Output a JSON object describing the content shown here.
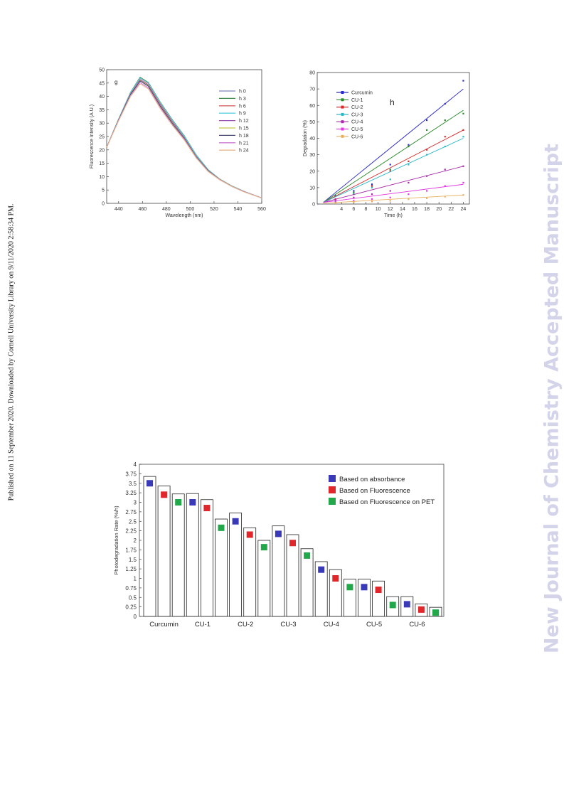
{
  "page": {
    "side_note": "Published on 11 September 2020. Downloaded by Cornell University Library on 9/11/2020 2:58:34 PM.",
    "watermark": "New Journal of Chemistry Accepted Manuscript"
  },
  "chart_data": [
    {
      "type": "line",
      "panel_label": "g",
      "xlabel": "Wavelength (nm)",
      "ylabel": "Fluorescence Intensity (A.U.)",
      "xlim": [
        430,
        560
      ],
      "ylim": [
        0,
        50
      ],
      "xticks": [
        440,
        460,
        480,
        500,
        520,
        540,
        560
      ],
      "yticks": [
        0,
        5,
        10,
        15,
        20,
        25,
        30,
        35,
        40,
        45,
        50
      ],
      "legend_position": "right",
      "x": [
        430,
        440,
        450,
        458,
        465,
        475,
        485,
        495,
        505,
        515,
        525,
        535,
        545,
        560
      ],
      "series": [
        {
          "name": "h 0",
          "color": "#7a86c4",
          "values": [
            21,
            31.5,
            41.5,
            47.0,
            45.0,
            37.5,
            31.0,
            25.0,
            18.0,
            12.5,
            9.0,
            6.5,
            4.5,
            2.0
          ]
        },
        {
          "name": "h 3",
          "color": "#3c8a4a",
          "values": [
            21,
            31.5,
            41.5,
            47.2,
            45.2,
            37.8,
            31.3,
            25.3,
            18.2,
            12.6,
            9.0,
            6.5,
            4.5,
            2.0
          ]
        },
        {
          "name": "h 6",
          "color": "#d46464",
          "values": [
            21,
            31.4,
            41.3,
            46.8,
            44.8,
            37.3,
            30.8,
            24.8,
            17.8,
            12.4,
            9.0,
            6.4,
            4.5,
            2.0
          ]
        },
        {
          "name": "h 9",
          "color": "#5fd0e0",
          "values": [
            21,
            31.5,
            41.4,
            46.9,
            45.0,
            37.6,
            31.1,
            25.1,
            18.1,
            12.5,
            9.0,
            6.5,
            4.5,
            2.0
          ]
        },
        {
          "name": "h 12",
          "color": "#9b4fb0",
          "values": [
            21,
            31.3,
            41.0,
            46.3,
            44.3,
            36.8,
            30.4,
            24.6,
            17.6,
            12.3,
            8.9,
            6.4,
            4.4,
            2.0
          ]
        },
        {
          "name": "h 15",
          "color": "#c8c44a",
          "values": [
            21,
            31.2,
            40.8,
            46.0,
            44.0,
            36.5,
            30.1,
            24.4,
            17.5,
            12.2,
            8.9,
            6.4,
            4.4,
            2.0
          ]
        },
        {
          "name": "h 18",
          "color": "#444a6e",
          "values": [
            21,
            31.2,
            40.7,
            45.8,
            43.8,
            36.3,
            29.9,
            24.3,
            17.4,
            12.2,
            8.8,
            6.3,
            4.4,
            2.0
          ]
        },
        {
          "name": "h 21",
          "color": "#c87ad0",
          "values": [
            21,
            31.0,
            40.3,
            45.2,
            43.2,
            35.8,
            29.5,
            24.0,
            17.2,
            12.0,
            8.8,
            6.3,
            4.4,
            2.0
          ]
        },
        {
          "name": "h 24",
          "color": "#e8b890",
          "values": [
            21,
            30.9,
            40.0,
            44.7,
            42.8,
            35.4,
            29.2,
            23.7,
            17.0,
            11.9,
            8.7,
            6.3,
            4.3,
            2.0
          ]
        }
      ]
    },
    {
      "type": "scatter",
      "panel_label": "h",
      "xlabel": "Time (h)",
      "ylabel": "Degradation (%)",
      "xlim": [
        0,
        25
      ],
      "ylim": [
        0,
        80
      ],
      "xticks": [
        4,
        6,
        8,
        10,
        12,
        14,
        16,
        18,
        20,
        22,
        24
      ],
      "yticks": [
        0,
        10,
        20,
        30,
        40,
        50,
        60,
        70,
        80
      ],
      "legend_position": "top-left",
      "x": [
        3,
        6,
        9,
        12,
        15,
        18,
        21,
        24
      ],
      "series": [
        {
          "name": "Curcumin",
          "color": "#2a2ac8",
          "values": [
            5,
            8,
            12,
            24,
            36,
            51,
            61,
            75
          ],
          "fit": [
            [
              1,
              1
            ],
            [
              24,
              70
            ]
          ]
        },
        {
          "name": "CU-1",
          "color": "#2a8a2a",
          "values": [
            3,
            7,
            11,
            21,
            35,
            45,
            51,
            55
          ],
          "fit": [
            [
              1,
              1
            ],
            [
              24,
              57
            ]
          ]
        },
        {
          "name": "CU-2",
          "color": "#d42a2a",
          "values": [
            3,
            6,
            11,
            20,
            26,
            33,
            41,
            45
          ],
          "fit": [
            [
              1,
              1
            ],
            [
              24,
              45
            ]
          ]
        },
        {
          "name": "CU-3",
          "color": "#2ab8c8",
          "values": [
            2,
            6,
            10,
            15,
            24,
            30,
            35,
            41
          ],
          "fit": [
            [
              1,
              1
            ],
            [
              24,
              40
            ]
          ]
        },
        {
          "name": "CU-4",
          "color": "#a82aa8",
          "values": [
            2,
            4,
            6,
            8,
            13,
            17,
            21,
            23
          ],
          "fit": [
            [
              1,
              1
            ],
            [
              24,
              23
            ]
          ]
        },
        {
          "name": "CU-5",
          "color": "#e03ae0",
          "values": [
            1,
            2,
            3,
            4,
            6,
            8,
            11,
            13
          ],
          "fit": [
            [
              1,
              1
            ],
            [
              24,
              12
            ]
          ]
        },
        {
          "name": "CU-6",
          "color": "#e8b060",
          "values": [
            0.5,
            1,
            1.5,
            2,
            3,
            3.5,
            4.5,
            5.5
          ],
          "fit": [
            [
              1,
              0.5
            ],
            [
              24,
              5.5
            ]
          ]
        }
      ]
    },
    {
      "type": "bar",
      "ylabel": "Photodegradation Rate (%/h)",
      "ylim": [
        0,
        4
      ],
      "yticks": [
        0,
        0.25,
        0.5,
        0.75,
        1,
        1.25,
        1.5,
        1.75,
        2,
        2.25,
        2.5,
        2.75,
        3,
        3.25,
        3.5,
        3.75,
        4
      ],
      "categories": [
        "Curcumin",
        "CU-1",
        "CU-2",
        "CU-3",
        "CU-4",
        "CU-5",
        "CU-6"
      ],
      "legend_position": "top-right",
      "series": [
        {
          "name": "Based on absorbance",
          "color": "#3a3ab8",
          "values": [
            3.68,
            3.23,
            2.72,
            2.38,
            1.44,
            0.98,
            0.52
          ],
          "marker": [
            3.5,
            3.0,
            2.5,
            2.17,
            1.23,
            0.77,
            0.32
          ]
        },
        {
          "name": "Based on Fluorescence",
          "color": "#e0282c",
          "values": [
            3.43,
            3.07,
            2.33,
            2.15,
            1.23,
            0.93,
            0.33
          ],
          "marker": [
            3.2,
            2.85,
            2.15,
            1.93,
            1.0,
            0.7,
            0.18
          ]
        },
        {
          "name": "Based on Fluorescence on PET",
          "color": "#22a84a",
          "values": [
            3.22,
            2.56,
            2.0,
            1.78,
            0.98,
            0.52,
            0.24
          ],
          "marker": [
            3.0,
            2.33,
            1.82,
            1.6,
            0.77,
            0.3,
            0.1
          ]
        }
      ]
    }
  ]
}
